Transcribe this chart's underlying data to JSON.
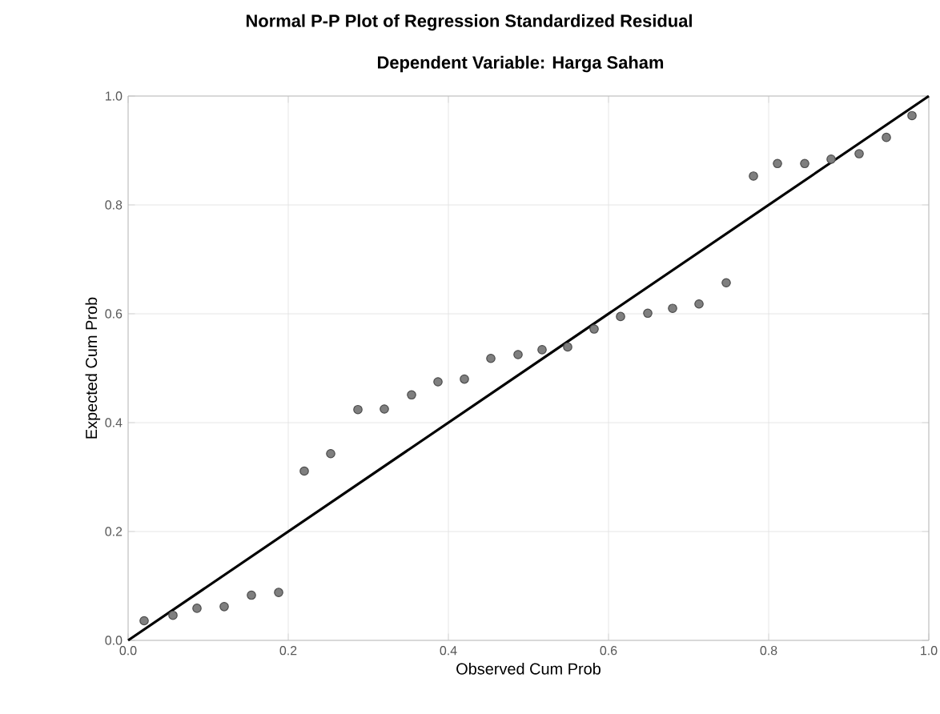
{
  "chart_data": {
    "type": "scatter",
    "title": "Normal P-P Plot of Regression Standardized Residual",
    "subtitle": "Dependent Variable: Harga Saham",
    "xlabel": "Observed Cum Prob",
    "ylabel": "Expected Cum Prob",
    "xlim": [
      0,
      1
    ],
    "ylim": [
      0,
      1
    ],
    "xticks": [
      {
        "value": 0,
        "label": "0.0"
      },
      {
        "value": 0.2,
        "label": "0.2"
      },
      {
        "value": 0.4,
        "label": "0.4"
      },
      {
        "value": 0.6,
        "label": "0.6"
      },
      {
        "value": 0.8,
        "label": "0.8"
      },
      {
        "value": 1,
        "label": "1.0"
      }
    ],
    "yticks": [
      {
        "value": 0,
        "label": "0.0"
      },
      {
        "value": 0.2,
        "label": "0.2"
      },
      {
        "value": 0.4,
        "label": "0.4"
      },
      {
        "value": 0.6,
        "label": "0.6"
      },
      {
        "value": 0.8,
        "label": "0.8"
      },
      {
        "value": 1,
        "label": "1.0"
      }
    ],
    "grid": true,
    "marker": "circle",
    "series": [
      {
        "color": "#7f7f7f",
        "x": [
          0.02,
          0.056,
          0.086,
          0.12,
          0.154,
          0.188,
          0.22,
          0.253,
          0.287,
          0.32,
          0.354,
          0.387,
          0.42,
          0.453,
          0.487,
          0.517,
          0.549,
          0.582,
          0.615,
          0.649,
          0.68,
          0.713,
          0.747,
          0.781,
          0.811,
          0.845,
          0.878,
          0.913,
          0.947,
          0.979
        ],
        "values": [
          0.036,
          0.046,
          0.059,
          0.062,
          0.083,
          0.088,
          0.311,
          0.343,
          0.424,
          0.425,
          0.451,
          0.475,
          0.48,
          0.518,
          0.525,
          0.534,
          0.539,
          0.572,
          0.595,
          0.601,
          0.61,
          0.618,
          0.657,
          0.853,
          0.876,
          0.876,
          0.884,
          0.894,
          0.924,
          0.964
        ]
      },
      {
        "type": "line",
        "color": "#000000",
        "marker": "none",
        "x": [
          0,
          1
        ],
        "values": [
          0,
          1
        ]
      }
    ]
  }
}
